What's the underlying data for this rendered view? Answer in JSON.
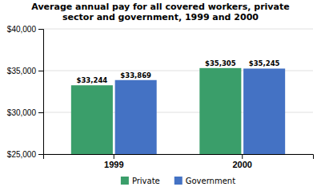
{
  "chart_data": {
    "type": "bar",
    "title": "Average annual pay for all covered workers, private\nsector and government, 1999 and 2000",
    "categories": [
      "1999",
      "2000"
    ],
    "series": [
      {
        "name": "Private",
        "color": "#3a9e6a",
        "values": [
          33244,
          35305
        ],
        "value_labels": [
          "$33,244",
          "$35,305"
        ]
      },
      {
        "name": "Government",
        "color": "#4472c4",
        "values": [
          33869,
          35245
        ],
        "value_labels": [
          "$33,869",
          "$35,245"
        ]
      }
    ],
    "ylim": [
      25000,
      40000
    ],
    "yticks": [
      {
        "value": 25000,
        "label": "$25,000"
      },
      {
        "value": 30000,
        "label": "$30,000"
      },
      {
        "value": 35000,
        "label": "$35,000"
      },
      {
        "value": 40000,
        "label": "$40,000"
      }
    ],
    "grid": true,
    "legend": "bottom",
    "data_labels": true
  }
}
